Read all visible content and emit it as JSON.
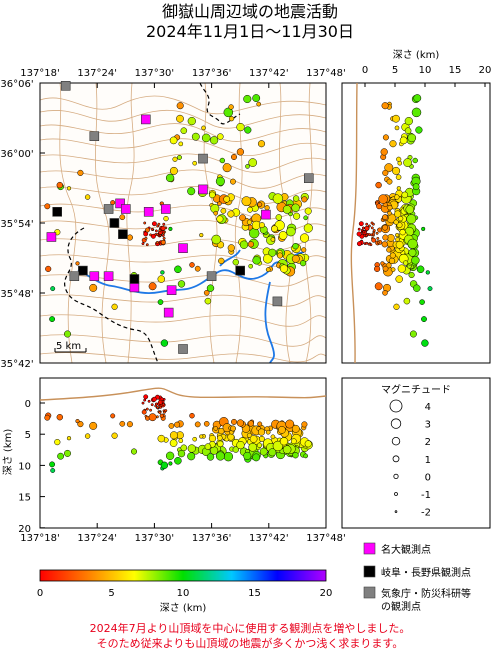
{
  "title": {
    "line1": "御嶽山周辺域の地震活動",
    "line2": "2024年11月1日～11月30日"
  },
  "map": {
    "lon_ticks": [
      "137°18'",
      "137°24'",
      "137°30'",
      "137°36'",
      "137°42'",
      "137°48'"
    ],
    "lat_ticks": [
      "36°06'",
      "36°00'",
      "35°54'",
      "35°48'",
      "35°42'"
    ],
    "scale_bar": "5 km"
  },
  "depth_profile_right": {
    "axis_title": "深さ (km)",
    "ticks": [
      "0",
      "5",
      "10",
      "15",
      "20"
    ]
  },
  "depth_profile_bottom": {
    "axis_title": "深さ (km)",
    "depth_ticks": [
      "0",
      "5",
      "10",
      "15",
      "20"
    ],
    "lon_ticks": [
      "137°18'",
      "137°24'",
      "137°30'",
      "137°36'",
      "137°42'",
      "137°48'"
    ]
  },
  "magnitude_legend": {
    "title": "マグニチュード",
    "labels": [
      "4",
      "3",
      "2",
      "1",
      "0",
      "-1",
      "-2"
    ]
  },
  "station_legend": {
    "items": [
      {
        "label": "名大観測点",
        "color": "#ff00ff"
      },
      {
        "label": "岐阜・長野県観測点",
        "color": "#000000"
      },
      {
        "label": "気象庁・防災科研等",
        "label2": "の観測点",
        "color": "#808080"
      }
    ]
  },
  "colorbar": {
    "title": "深さ (km)",
    "ticks": [
      "0",
      "5",
      "10",
      "15",
      "20"
    ],
    "stops": [
      "#ff0000",
      "#ff8000",
      "#ffff00",
      "#00e000",
      "#00c8ff",
      "#0000ff",
      "#b000ff"
    ]
  },
  "notes": {
    "line1": "2024年7月より山頂域を中心に使用する観測点を増やしました。",
    "line2": "そのため従来よりも山頂域の地震が多くかつ浅く求まります。"
  },
  "colors": {
    "topo": "#c8915a",
    "river": "#1e78e6",
    "boundary": "#000000",
    "note": "#e8001c"
  }
}
